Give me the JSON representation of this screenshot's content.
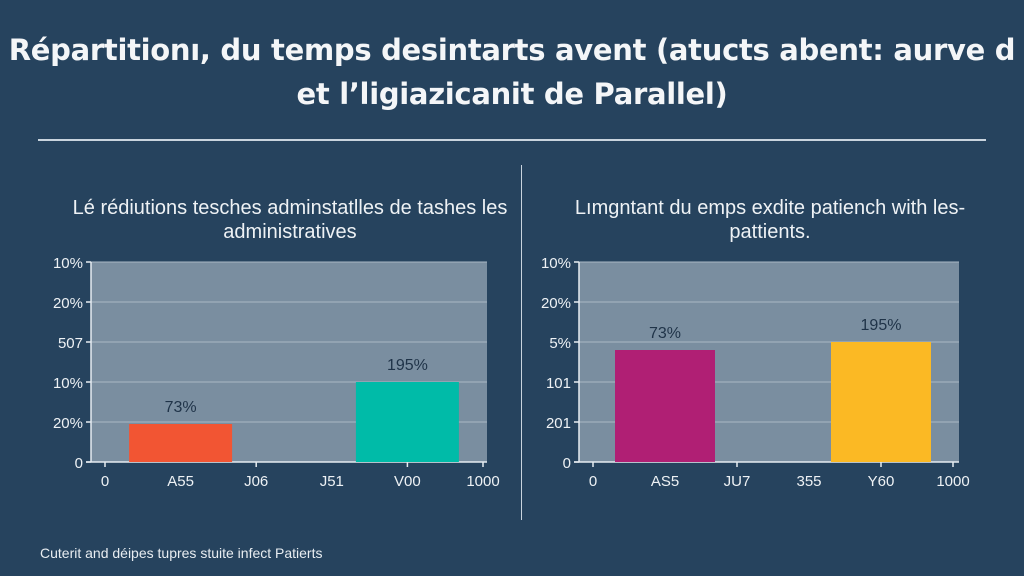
{
  "title": "Répartitionı, du temps desintarts avent (atucts abent: aurve d et l’ligiazicanit de Parallel)",
  "footer": "Cuterit and déipes tupres stuite infect Patierts",
  "chart_data": [
    {
      "type": "bar",
      "title": "Lé rédiutions tesches adminstatlles de tashes les administratives",
      "categories": [
        "0",
        "A55",
        "J06",
        "J51",
        "V00",
        "1000"
      ],
      "yticks": [
        "0",
        "20%",
        "10%",
        "507",
        "20%",
        "10%"
      ],
      "ylim": [
        0,
        5
      ],
      "grid": true,
      "bars": [
        {
          "category": "A55",
          "value": 0.95,
          "label": "73%",
          "color": "#f25533"
        },
        {
          "category": "V00",
          "value": 2.0,
          "label": "195%",
          "color": "#00bba8"
        }
      ]
    },
    {
      "type": "bar",
      "title": "Lımgntant du emps exdite patiench with les-pattients.",
      "categories": [
        "0",
        "AS5",
        "JU7",
        "355",
        "Y60",
        "1000"
      ],
      "yticks": [
        "0",
        "201",
        "101",
        "5%",
        "20%",
        "10%"
      ],
      "ylim": [
        0,
        5
      ],
      "grid": true,
      "bars": [
        {
          "category": "AS5",
          "value": 2.8,
          "label": "73%",
          "color": "#b01f74"
        },
        {
          "category": "Y60",
          "value": 3.0,
          "label": "195%",
          "color": "#fbb924"
        }
      ]
    }
  ],
  "colors": {
    "background": "#26435e",
    "plot_background": "#7a8ea0",
    "gridline": "#a9b8c5"
  }
}
